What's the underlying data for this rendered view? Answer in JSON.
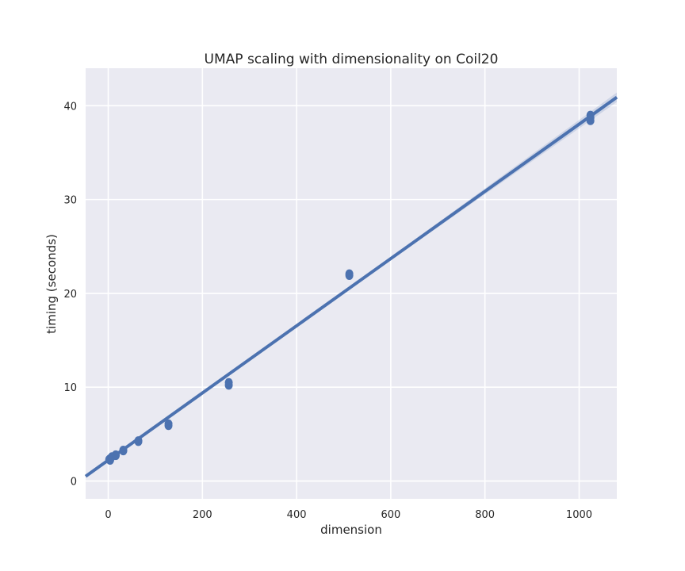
{
  "chart_data": {
    "type": "scatter",
    "title": "UMAP scaling with dimensionality on Coil20",
    "xlabel": "dimension",
    "ylabel": "timing (seconds)",
    "xlim": [
      -48,
      1080
    ],
    "ylim": [
      -1.9,
      44
    ],
    "xticks": [
      0,
      200,
      400,
      600,
      800,
      1000
    ],
    "yticks": [
      0,
      10,
      20,
      30,
      40
    ],
    "grid": true,
    "background_color": "#eaeaf2",
    "grid_color": "#ffffff",
    "series": [
      {
        "color": "#4c72b0",
        "points": [
          {
            "x": 2,
            "y": 2.3
          },
          {
            "x": 4,
            "y": 2.2
          },
          {
            "x": 4,
            "y": 2.4
          },
          {
            "x": 8,
            "y": 2.6
          },
          {
            "x": 16,
            "y": 2.7
          },
          {
            "x": 16,
            "y": 2.8
          },
          {
            "x": 32,
            "y": 3.2
          },
          {
            "x": 32,
            "y": 3.3
          },
          {
            "x": 64,
            "y": 4.2
          },
          {
            "x": 64,
            "y": 4.3
          },
          {
            "x": 128,
            "y": 5.9
          },
          {
            "x": 128,
            "y": 6.1
          },
          {
            "x": 256,
            "y": 10.2
          },
          {
            "x": 256,
            "y": 10.5
          },
          {
            "x": 512,
            "y": 21.9
          },
          {
            "x": 512,
            "y": 22.1
          },
          {
            "x": 1024,
            "y": 38.4
          },
          {
            "x": 1024,
            "y": 38.7
          },
          {
            "x": 1024,
            "y": 39.0
          }
        ],
        "regression": {
          "x": [
            -48,
            1080
          ],
          "y": [
            0.5,
            40.9
          ]
        }
      }
    ]
  }
}
